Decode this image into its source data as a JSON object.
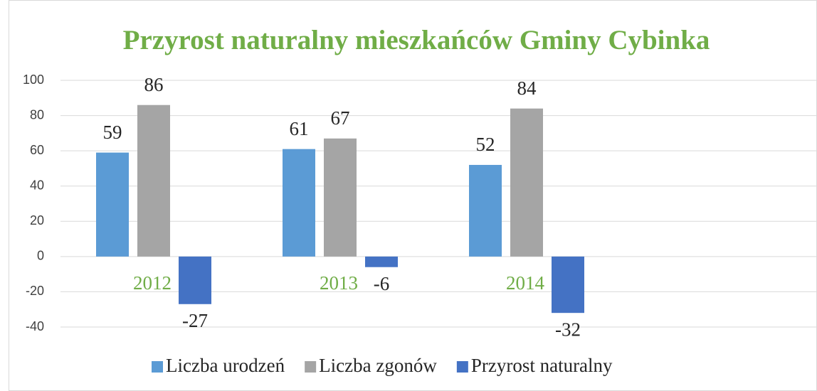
{
  "chart_data": {
    "type": "bar",
    "title": "Przyrost naturalny mieszkańców Gminy Cybinka",
    "categories": [
      "2012",
      "2013",
      "2014",
      null
    ],
    "series": [
      {
        "name": "Liczba urodzeń",
        "color": "#5b9bd5",
        "values": [
          59,
          61,
          52,
          null
        ]
      },
      {
        "name": "Liczba zgonów",
        "color": "#a5a5a5",
        "values": [
          86,
          67,
          84,
          null
        ]
      },
      {
        "name": "Przyrost naturalny",
        "color": "#4472c4",
        "values": [
          -27,
          -6,
          -32,
          null
        ]
      }
    ],
    "ylim": [
      -40,
      100
    ],
    "yticks": [
      -40,
      -20,
      0,
      20,
      40,
      60,
      80,
      100
    ],
    "grid": true,
    "category_label_color": "#70ad47",
    "title_color": "#70ad47",
    "legend": "bottom"
  }
}
